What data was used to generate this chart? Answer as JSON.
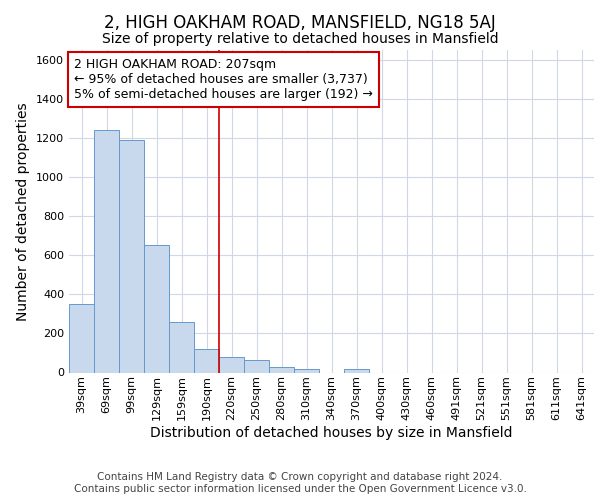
{
  "title": "2, HIGH OAKHAM ROAD, MANSFIELD, NG18 5AJ",
  "subtitle": "Size of property relative to detached houses in Mansfield",
  "xlabel": "Distribution of detached houses by size in Mansfield",
  "ylabel": "Number of detached properties",
  "footer_line1": "Contains HM Land Registry data © Crown copyright and database right 2024.",
  "footer_line2": "Contains public sector information licensed under the Open Government Licence v3.0.",
  "annotation_line1": "2 HIGH OAKHAM ROAD: 207sqm",
  "annotation_line2": "← 95% of detached houses are smaller (3,737)",
  "annotation_line3": "5% of semi-detached houses are larger (192) →",
  "categories": [
    "39sqm",
    "69sqm",
    "99sqm",
    "129sqm",
    "159sqm",
    "190sqm",
    "220sqm",
    "250sqm",
    "280sqm",
    "310sqm",
    "340sqm",
    "370sqm",
    "400sqm",
    "430sqm",
    "460sqm",
    "491sqm",
    "521sqm",
    "551sqm",
    "581sqm",
    "611sqm",
    "641sqm"
  ],
  "values": [
    350,
    1240,
    1190,
    650,
    260,
    120,
    80,
    65,
    30,
    20,
    0,
    20,
    0,
    0,
    0,
    0,
    0,
    0,
    0,
    0,
    0
  ],
  "bar_color": "#c8d9ee",
  "bar_edge_color": "#6699cc",
  "vline_x_idx": 6,
  "vline_color": "#cc0000",
  "ylim": [
    0,
    1650
  ],
  "yticks": [
    0,
    200,
    400,
    600,
    800,
    1000,
    1200,
    1400,
    1600
  ],
  "bg_color": "#ffffff",
  "grid_color": "#d0d8e8",
  "annotation_box_color": "#cc0000",
  "title_fontsize": 12,
  "subtitle_fontsize": 10,
  "axis_label_fontsize": 10,
  "tick_fontsize": 8,
  "annotation_fontsize": 9,
  "footer_fontsize": 7.5
}
